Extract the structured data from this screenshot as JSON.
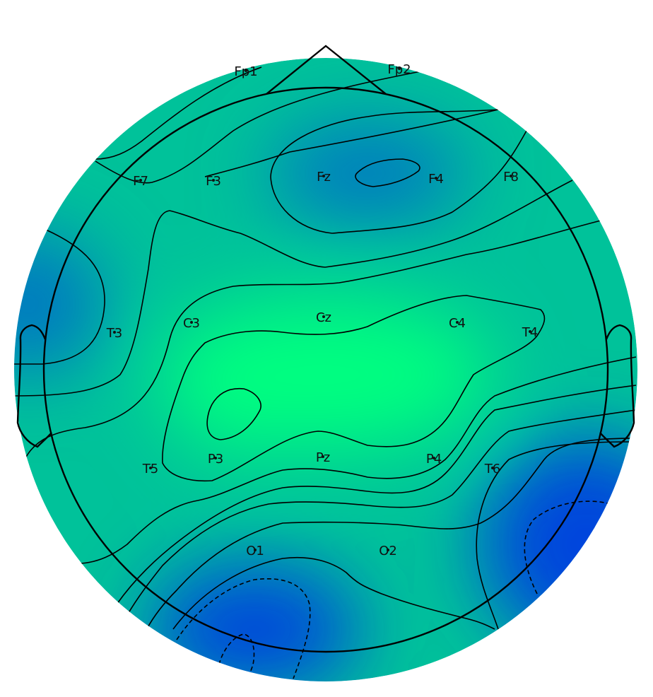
{
  "colors": {
    "high": "#00ff80",
    "mid": "#00c29a",
    "low": "#0077c2",
    "lowest": "#0044dd",
    "outline": "#000000",
    "background": "#ffffff"
  },
  "electrodes": [
    {
      "label": "Fp1"
    },
    {
      "label": "Fp2"
    },
    {
      "label": "F7"
    },
    {
      "label": "F3"
    },
    {
      "label": "Fz"
    },
    {
      "label": "F4"
    },
    {
      "label": "F8"
    },
    {
      "label": "T3"
    },
    {
      "label": "C3"
    },
    {
      "label": "Cz"
    },
    {
      "label": "C4"
    },
    {
      "label": "T4"
    },
    {
      "label": "T5"
    },
    {
      "label": "P3"
    },
    {
      "label": "Pz"
    },
    {
      "label": "P4"
    },
    {
      "label": "T6"
    },
    {
      "label": "O1"
    },
    {
      "label": "O2"
    }
  ]
}
